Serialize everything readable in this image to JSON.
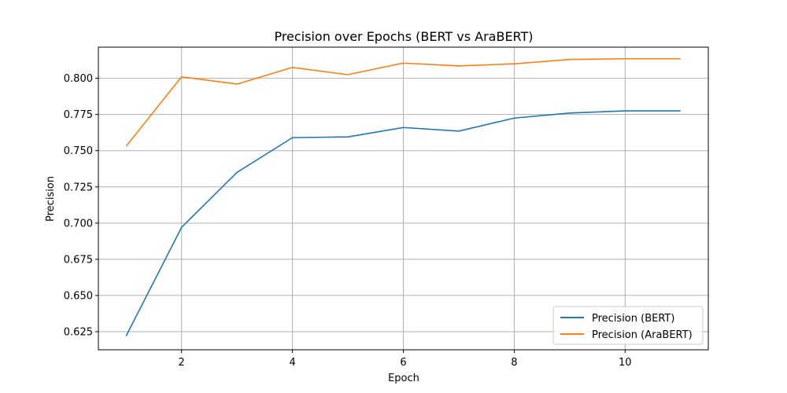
{
  "chart_data": {
    "type": "line",
    "title": "Precision over Epochs (BERT vs AraBERT)",
    "xlabel": "Epoch",
    "ylabel": "Precision",
    "xlim": [
      0.5,
      11.5
    ],
    "ylim": [
      0.6125,
      0.8215
    ],
    "xticks": [
      2,
      4,
      6,
      8,
      10
    ],
    "yticks": [
      0.625,
      0.65,
      0.675,
      0.7,
      0.725,
      0.75,
      0.775,
      0.8
    ],
    "ytick_labels": [
      "0.625",
      "0.650",
      "0.675",
      "0.700",
      "0.725",
      "0.750",
      "0.775",
      "0.800"
    ],
    "xtick_labels": [
      "2",
      "4",
      "6",
      "8",
      "10"
    ],
    "grid": true,
    "legend_position": "lower-right",
    "x": [
      1,
      2,
      3,
      4,
      5,
      6,
      7,
      8,
      9,
      10,
      11
    ],
    "series": [
      {
        "name": "Precision (BERT)",
        "color": "#1f77b4",
        "values": [
          0.622,
          0.697,
          0.735,
          0.759,
          0.7595,
          0.766,
          0.7635,
          0.7725,
          0.776,
          0.7775,
          0.7775
        ]
      },
      {
        "name": "Precision (AraBERT)",
        "color": "#ff7f0e",
        "values": [
          0.753,
          0.801,
          0.796,
          0.8075,
          0.8025,
          0.8105,
          0.8085,
          0.81,
          0.813,
          0.8135,
          0.8135
        ]
      }
    ]
  }
}
